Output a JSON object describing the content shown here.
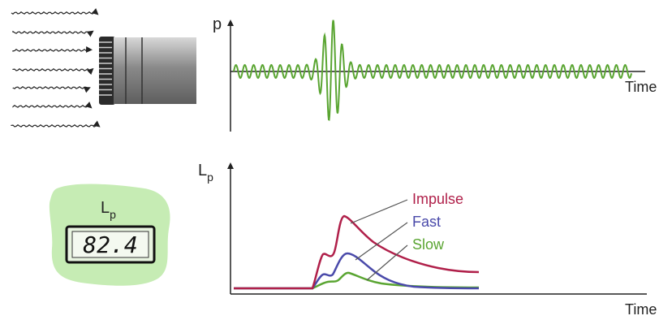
{
  "top_plot": {
    "y_label": "p",
    "x_label": "Time",
    "signal_color": "#5aa532"
  },
  "bottom_plot": {
    "y_label_main": "L",
    "y_label_sub": "p",
    "x_label": "Time",
    "curves": [
      {
        "name": "Impulse",
        "color": "#b0204a"
      },
      {
        "name": "Fast",
        "color": "#4a4aaa"
      },
      {
        "name": "Slow",
        "color": "#5aa532"
      }
    ]
  },
  "meter": {
    "label_main": "L",
    "label_sub": "p",
    "reading": "82.4",
    "background_color": "#c6ecb4"
  },
  "icons": {
    "sound_waves": "arrow-lines",
    "microphone": "microphone-icon"
  }
}
